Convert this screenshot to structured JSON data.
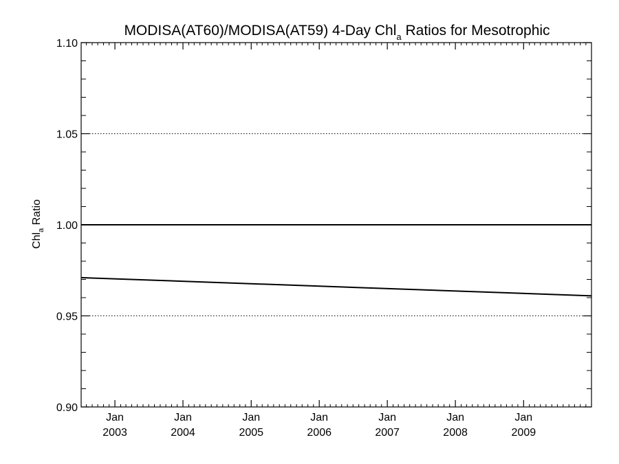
{
  "chart_data": {
    "type": "line",
    "title": {
      "main": "MODISA(AT60)/MODISA(AT59) 4-Day Chl",
      "subscript": "a",
      "suffix": " Ratios for Mesotrophic"
    },
    "xlabel": "",
    "ylabel": {
      "main": "Chl",
      "subscript": "a",
      "suffix": " Ratio"
    },
    "xlim": [
      "2002-07-04",
      "2009-12-31"
    ],
    "ylim": [
      0.9,
      1.1
    ],
    "x_tick_labels": [
      {
        "month": "Jan",
        "year": "2003",
        "date": "2003-01-01"
      },
      {
        "month": "Jan",
        "year": "2004",
        "date": "2004-01-01"
      },
      {
        "month": "Jan",
        "year": "2005",
        "date": "2005-01-01"
      },
      {
        "month": "Jan",
        "year": "2006",
        "date": "2006-01-01"
      },
      {
        "month": "Jan",
        "year": "2007",
        "date": "2007-01-01"
      },
      {
        "month": "Jan",
        "year": "2008",
        "date": "2008-01-01"
      },
      {
        "month": "Jan",
        "year": "2009",
        "date": "2009-01-01"
      }
    ],
    "y_ticks": [
      0.9,
      0.95,
      1.0,
      1.05,
      1.1
    ],
    "y_tick_labels": [
      "0.90",
      "0.95",
      "1.00",
      "1.05",
      "1.10"
    ],
    "grid": {
      "y_dotted_at": [
        0.95,
        1.05,
        1.1
      ],
      "solid_reference": 1.0
    },
    "series": [
      {
        "x": [
          "2002-07-04",
          "2009-12-31"
        ],
        "y": [
          0.971,
          0.961
        ],
        "color": "#000000"
      }
    ],
    "reference_line": {
      "y": 1.0,
      "color": "#000000"
    }
  }
}
